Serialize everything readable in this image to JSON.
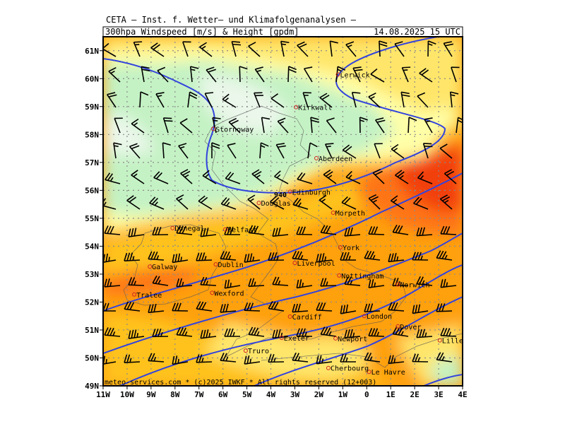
{
  "header": {
    "line1": "CETA – Inst. f. Wetter– und Klimafolgenanalysen –",
    "product": "300hpa Windspeed [m/s] & Height [gpdm]",
    "valid_time": "14.08.2025 15 UTC"
  },
  "footer": {
    "copyright": "meteo-services.com * (c)2025 IWKF * All rights reserved (12+003)"
  },
  "axes": {
    "lat_labels": [
      "61N",
      "60N",
      "59N",
      "58N",
      "57N",
      "56N",
      "55N",
      "54N",
      "53N",
      "52N",
      "51N",
      "50N",
      "49N"
    ],
    "lon_labels": [
      "11W",
      "10W",
      "9W",
      "8W",
      "7W",
      "6W",
      "5W",
      "4W",
      "3W",
      "2W",
      "1W",
      "0",
      "1E",
      "2E",
      "3E",
      "4E"
    ],
    "lat_range": [
      49,
      61.5
    ],
    "lon_range": [
      -11,
      4
    ]
  },
  "contour_label": "940",
  "cities": [
    {
      "name": "Lerwick",
      "lon": -1.2,
      "lat": 60.15
    },
    {
      "name": "Kirkwall",
      "lon": -2.95,
      "lat": 58.98
    },
    {
      "name": "Stornoway",
      "lon": -6.4,
      "lat": 58.2
    },
    {
      "name": "Aberdeen",
      "lon": -2.1,
      "lat": 57.15
    },
    {
      "name": "Edinburgh",
      "lon": -3.2,
      "lat": 55.95
    },
    {
      "name": "Douglas",
      "lon": -4.5,
      "lat": 55.55
    },
    {
      "name": "Morpeth",
      "lon": -1.4,
      "lat": 55.2
    },
    {
      "name": "Donegal",
      "lon": -8.1,
      "lat": 54.65
    },
    {
      "name": "Belfast",
      "lon": -5.9,
      "lat": 54.6
    },
    {
      "name": "York",
      "lon": -1.1,
      "lat": 53.96
    },
    {
      "name": "Dublin",
      "lon": -6.3,
      "lat": 53.35
    },
    {
      "name": "Liverpool",
      "lon": -3.0,
      "lat": 53.4
    },
    {
      "name": "Galway",
      "lon": -9.05,
      "lat": 53.27
    },
    {
      "name": "Nottingham",
      "lon": -1.15,
      "lat": 52.95
    },
    {
      "name": "Norwich",
      "lon": 1.3,
      "lat": 52.63
    },
    {
      "name": "Wexford",
      "lon": -6.45,
      "lat": 52.33
    },
    {
      "name": "Tralee",
      "lon": -9.7,
      "lat": 52.27
    },
    {
      "name": "Cardiff",
      "lon": -3.2,
      "lat": 51.48
    },
    {
      "name": "London",
      "lon": -0.1,
      "lat": 51.5
    },
    {
      "name": "Dover",
      "lon": 1.3,
      "lat": 51.13
    },
    {
      "name": "Exeter",
      "lon": -3.55,
      "lat": 50.72
    },
    {
      "name": "Newport",
      "lon": -1.3,
      "lat": 50.7
    },
    {
      "name": "Lille",
      "lon": 3.05,
      "lat": 50.63
    },
    {
      "name": "Truro",
      "lon": -5.05,
      "lat": 50.26
    },
    {
      "name": "Le Havre",
      "lon": 0.1,
      "lat": 49.5
    },
    {
      "name": "Cherbourg",
      "lon": -1.6,
      "lat": 49.64
    }
  ],
  "colors": {
    "frame": "#000000",
    "grid": "#8a8a8a",
    "contour": "#3344dd",
    "city": "#cc2222",
    "speed_scale": [
      "#eaf7ea",
      "#c4f2c4",
      "#ffffa8",
      "#ffe66a",
      "#ffc21a",
      "#ffa010",
      "#ff7418",
      "#f24010"
    ]
  }
}
